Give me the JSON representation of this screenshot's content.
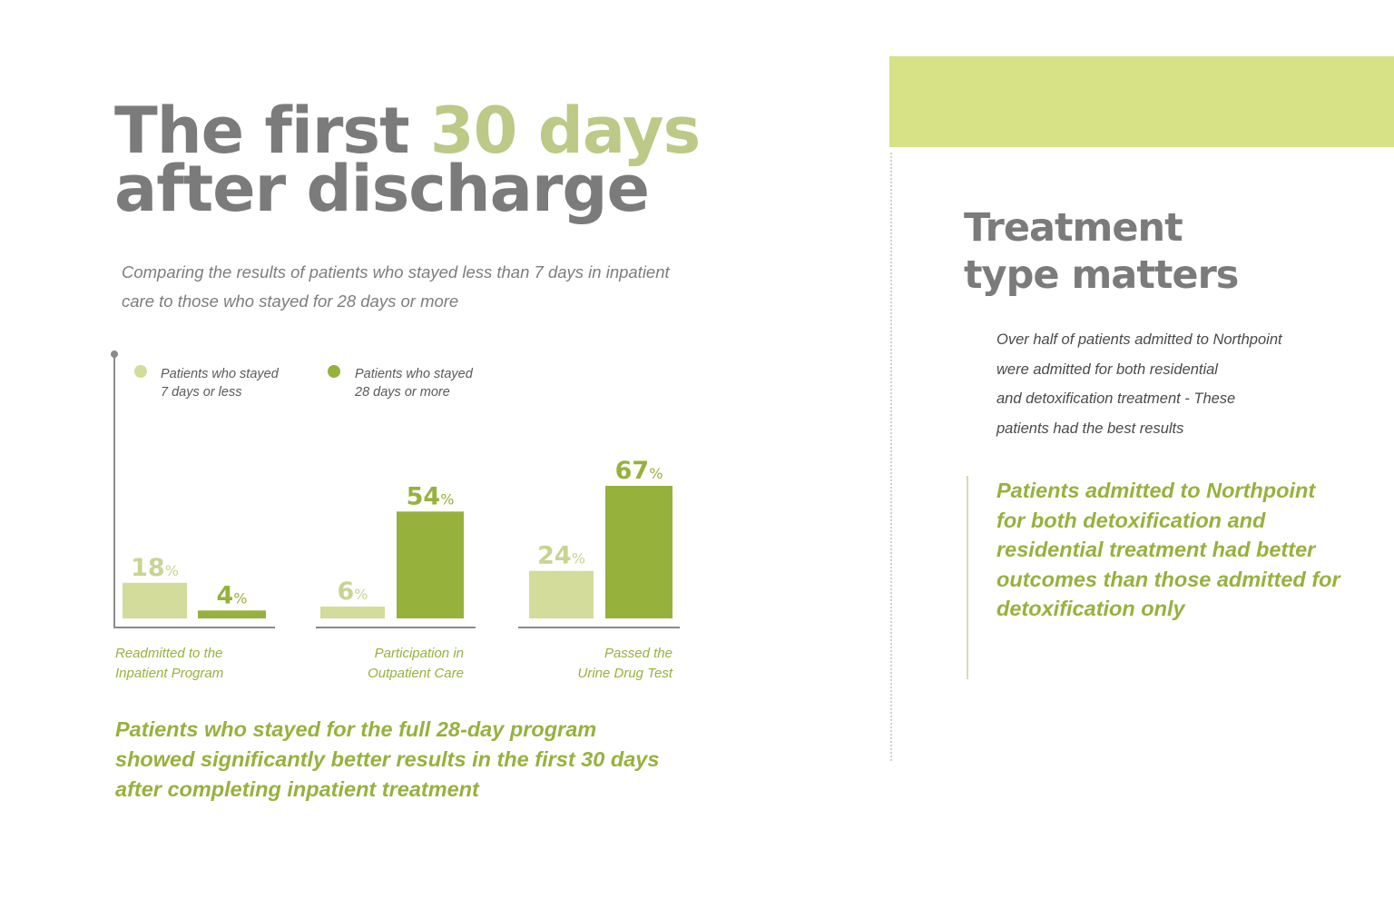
{
  "title": {
    "line1_plain": "The first ",
    "line1_accent": "30 days",
    "line2": "after discharge"
  },
  "subtitle": "Comparing the results of patients who stayed less than 7 days in inpatient care to those who stayed for 28 days or more",
  "legend": [
    {
      "line1": "Patients who stayed",
      "line2": "7 days or less",
      "color": "#d3dc9a"
    },
    {
      "line1": "Patients who stayed",
      "line2": "28 days or more",
      "color": "#97b13d"
    }
  ],
  "chart_data": {
    "type": "bar",
    "categories": [
      {
        "line1": "Readmitted to the",
        "line2": "Inpatient Program"
      },
      {
        "line1": "Participation in",
        "line2": "Outpatient Care"
      },
      {
        "line1": "Passed the",
        "line2": "Urine Drug Test"
      }
    ],
    "series": [
      {
        "name": "Patients who stayed 7 days or less",
        "values": [
          18,
          6,
          24
        ],
        "color": "#d3dc9a",
        "label_color": "#c8d494"
      },
      {
        "name": "Patients who stayed 28 days or more",
        "values": [
          4,
          54,
          67
        ],
        "color": "#97b13d",
        "label_color": "#97b13d"
      }
    ],
    "value_suffix": "%",
    "ylim": [
      0,
      70
    ]
  },
  "conclusion": "Patients who stayed for the full 28-day program showed significantly better results in the first 30 days after completing inpatient treatment",
  "right": {
    "title_line1": "Treatment",
    "title_line2": "type matters",
    "body_lines": [
      "Over half of patients admitted to Northpoint",
      "were admitted for both residential",
      "and detoxification treatment - These",
      "patients had the best results"
    ],
    "quote": "Patients admitted to Northpoint for both detoxification and residential treatment had better outcomes than those admitted for detoxification only"
  }
}
